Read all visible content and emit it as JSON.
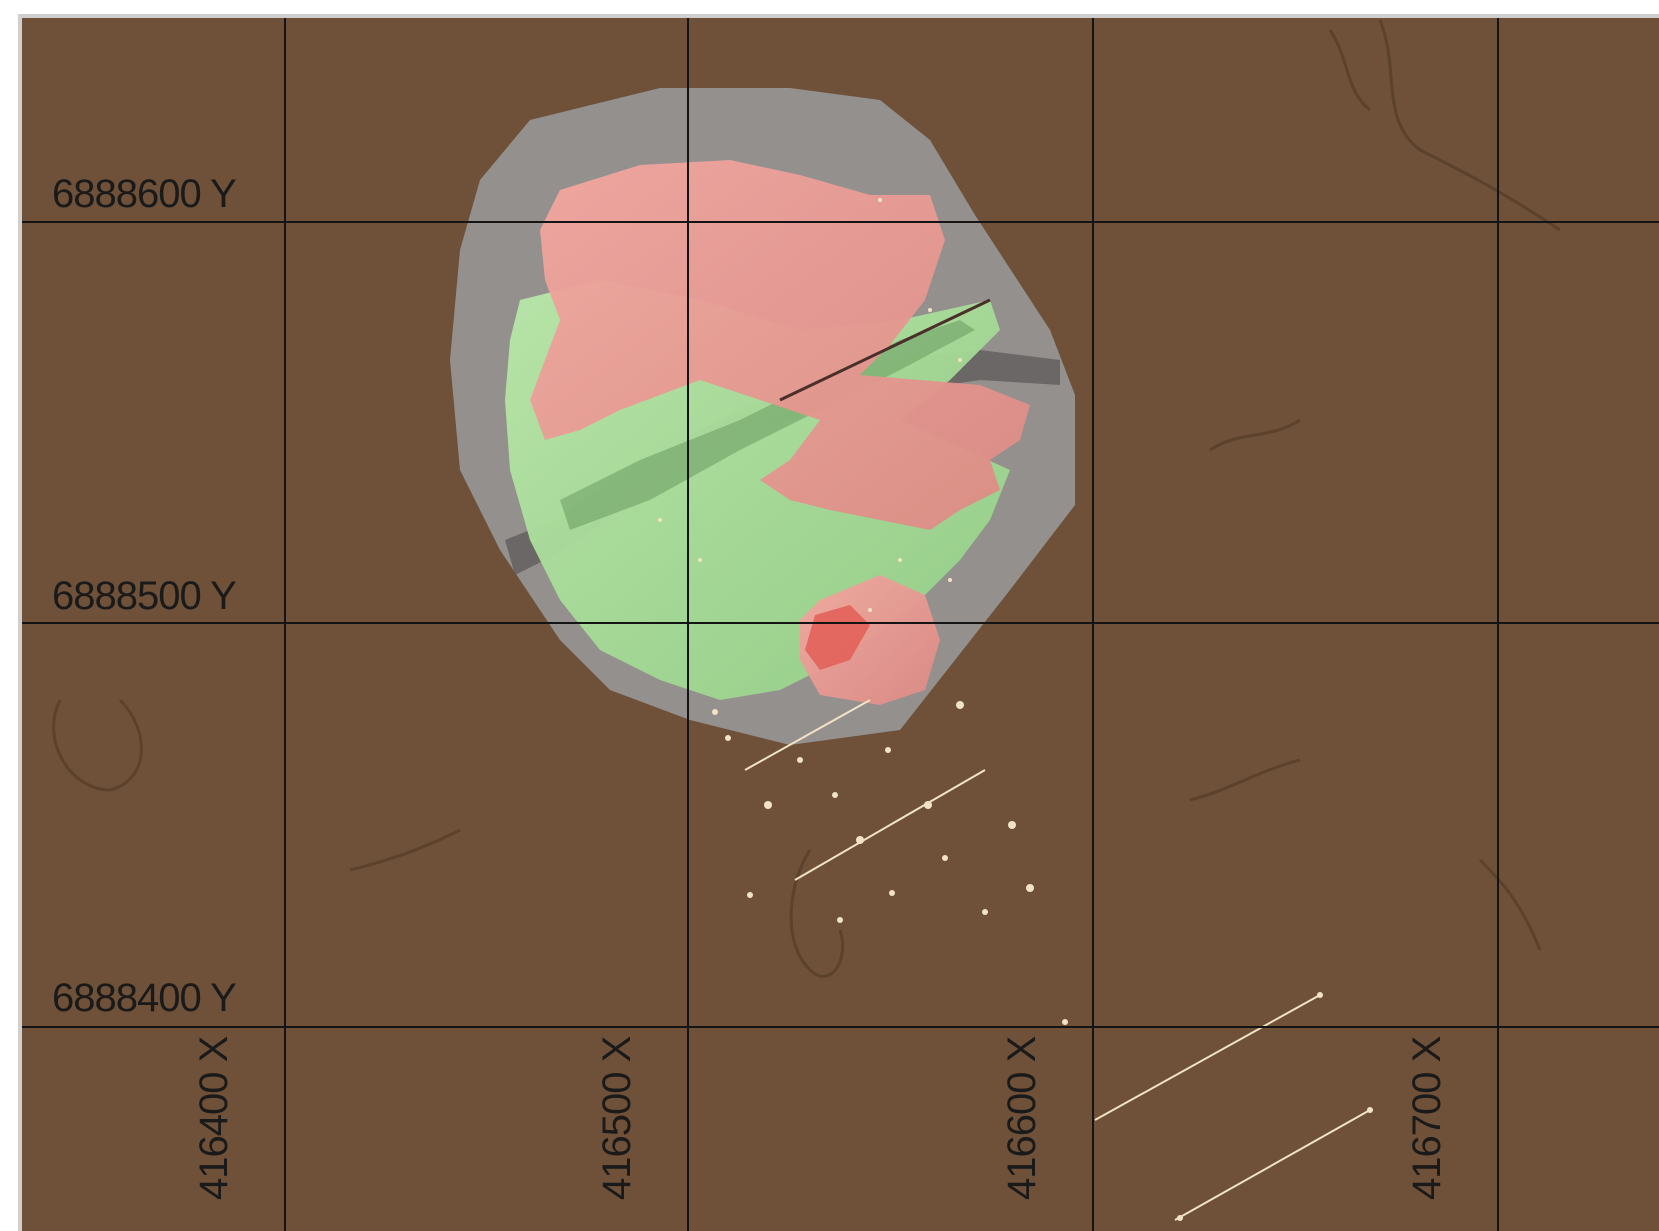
{
  "grid": {
    "y_labels": [
      {
        "value": "6888600 Y"
      },
      {
        "value": "6888500 Y"
      },
      {
        "value": "6888400 Y"
      }
    ],
    "x_labels": [
      {
        "value": "416400 X"
      },
      {
        "value": "416500 X"
      },
      {
        "value": "416600 X"
      },
      {
        "value": "416700 X"
      }
    ]
  },
  "colors": {
    "terrain": "#6e5138",
    "shell": "#9a9898",
    "zone_pink": "#e59a92",
    "zone_green": "#a8dc98",
    "grid_line": "#141414",
    "drill_points": "#f3e3c5"
  }
}
